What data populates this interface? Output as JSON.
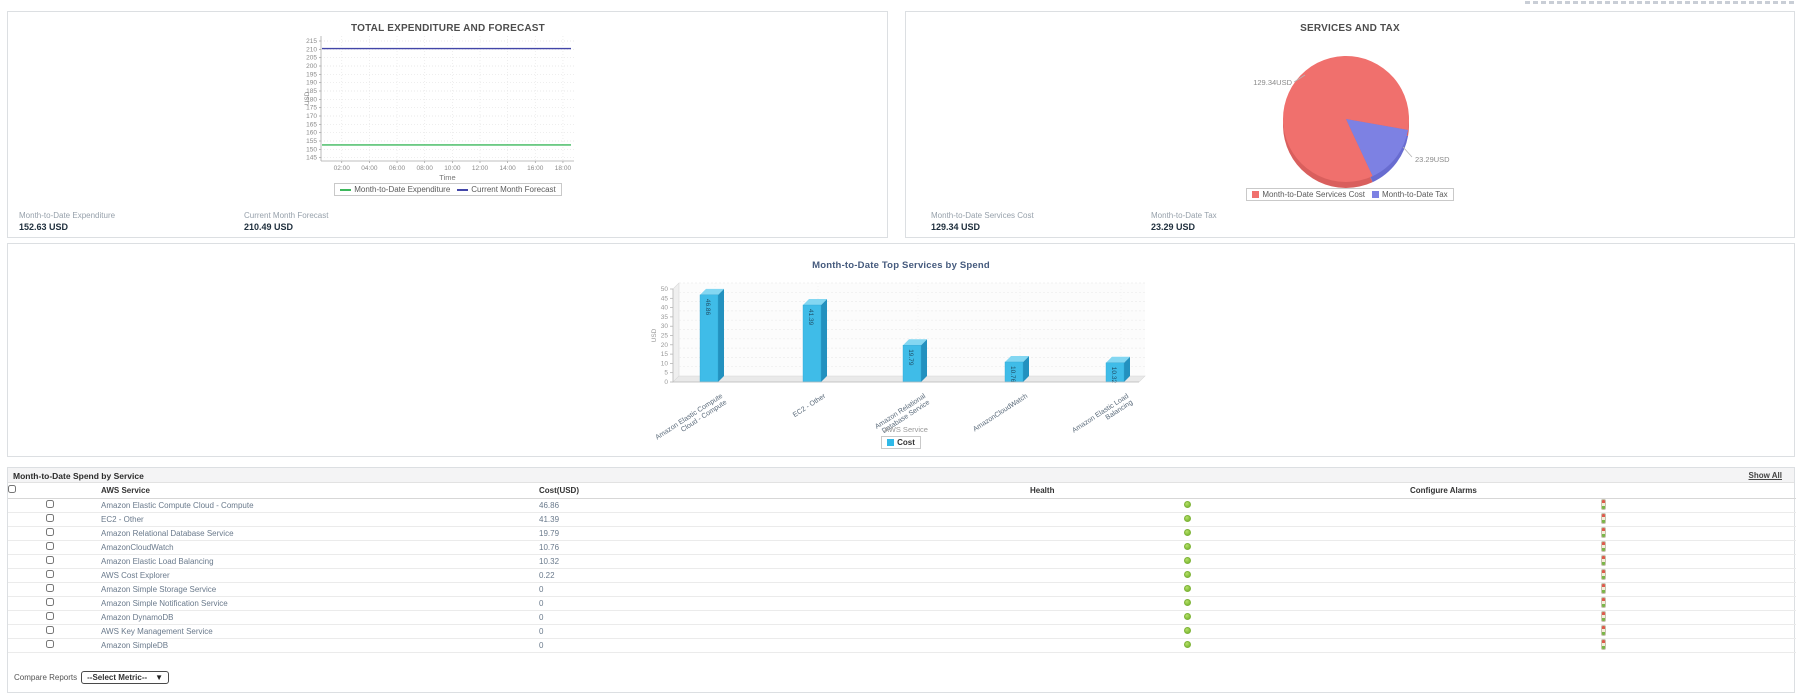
{
  "panels": {
    "expenditure": {
      "stats": [
        {
          "label": "Month-to-Date Expenditure",
          "value": "152.63 USD"
        },
        {
          "label": "Current Month Forecast",
          "value": "210.49 USD"
        }
      ]
    },
    "services_tax": {
      "stats": [
        {
          "label": "Month-to-Date Services Cost",
          "value": "129.34 USD"
        },
        {
          "label": "Month-to-Date Tax",
          "value": "23.29 USD"
        }
      ]
    }
  },
  "chart_data": [
    {
      "type": "line",
      "title": "TOTAL EXPENDITURE AND FORECAST",
      "xlabel": "Time",
      "ylabel": "USD",
      "ylim": [
        143,
        218
      ],
      "y_ticks": [
        145,
        150,
        155,
        160,
        165,
        170,
        175,
        180,
        185,
        190,
        195,
        200,
        205,
        210,
        215
      ],
      "x_ticks": [
        "02:00",
        "04:00",
        "06:00",
        "08:00",
        "10:00",
        "12:00",
        "14:00",
        "16:00",
        "18:00"
      ],
      "grid": true,
      "legend_position": "bottom",
      "series": [
        {
          "name": "Month-to-Date Expenditure",
          "value": 152.63,
          "color": "#3cb85c"
        },
        {
          "name": "Current Month Forecast",
          "value": 210.49,
          "color": "#4246a8"
        }
      ]
    },
    {
      "type": "pie",
      "title": "SERVICES AND TAX",
      "legend_position": "bottom",
      "slices": [
        {
          "label": "Month-to-Date Services Cost",
          "value": 129.34,
          "display": "129.34USD",
          "color": "#f0706d"
        },
        {
          "label": "Month-to-Date Tax",
          "value": 23.29,
          "display": "23.29USD",
          "color": "#7d81e3"
        }
      ]
    },
    {
      "type": "bar",
      "title": "Month-to-Date Top Services by Spend",
      "xlabel": "AWS Service",
      "ylabel": "USD",
      "ylim": [
        0,
        50
      ],
      "y_ticks": [
        0,
        5,
        10,
        15,
        20,
        25,
        30,
        35,
        40,
        45,
        50
      ],
      "categories": [
        "Amazon Elastic Compute Cloud - Compute",
        "EC2 - Other",
        "Amazon Relational Database Service",
        "AmazonCloudWatch",
        "Amazon Elastic Load Balancing"
      ],
      "values": [
        46.86,
        41.39,
        19.79,
        10.76,
        10.32
      ],
      "bar_color": "#3fbce8",
      "legend": [
        {
          "label": "Cost",
          "color": "#2fb9e8"
        }
      ]
    }
  ],
  "table": {
    "section_title": "Month-to-Date Spend by Service",
    "show_all_label": "Show All",
    "columns": [
      "AWS Service",
      "Cost(USD)",
      "Health",
      "Configure Alarms"
    ],
    "rows": [
      {
        "service": "Amazon Elastic Compute Cloud - Compute",
        "cost": "46.86",
        "health": "good"
      },
      {
        "service": "EC2 - Other",
        "cost": "41.39",
        "health": "good"
      },
      {
        "service": "Amazon Relational Database Service",
        "cost": "19.79",
        "health": "good"
      },
      {
        "service": "AmazonCloudWatch",
        "cost": "10.76",
        "health": "good"
      },
      {
        "service": "Amazon Elastic Load Balancing",
        "cost": "10.32",
        "health": "good"
      },
      {
        "service": "AWS Cost Explorer",
        "cost": "0.22",
        "health": "good"
      },
      {
        "service": "Amazon Simple Storage Service",
        "cost": "0",
        "health": "good"
      },
      {
        "service": "Amazon Simple Notification Service",
        "cost": "0",
        "health": "good"
      },
      {
        "service": "Amazon DynamoDB",
        "cost": "0",
        "health": "good"
      },
      {
        "service": "AWS Key Management Service",
        "cost": "0",
        "health": "good"
      },
      {
        "service": "Amazon SimpleDB",
        "cost": "0",
        "health": "good"
      }
    ]
  },
  "footer": {
    "compare_reports_label": "Compare Reports",
    "metric_select_value": "--Select Metric--",
    "caret": "▼"
  }
}
